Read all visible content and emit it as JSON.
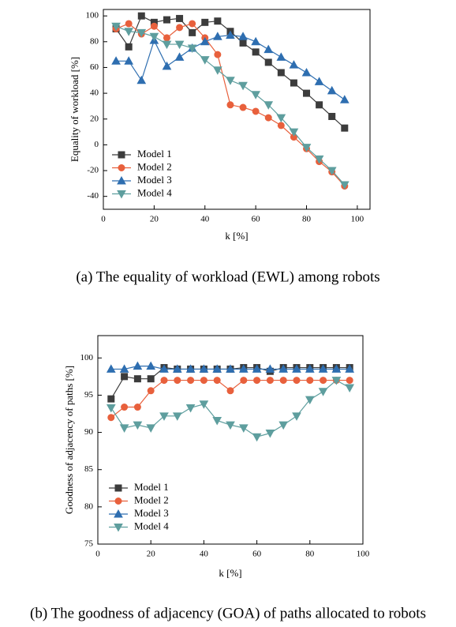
{
  "chart_data": [
    {
      "type": "line",
      "caption": "(a) The equality of workload (EWL) among robots",
      "xlabel": "k [%]",
      "ylabel": "Equality of workload [%]",
      "xlim": [
        0,
        105
      ],
      "xticks": [
        0,
        20,
        40,
        60,
        80,
        100
      ],
      "ylim": [
        -50,
        105
      ],
      "yticks": [
        -40,
        -20,
        0,
        20,
        40,
        60,
        80,
        100
      ],
      "legend": "lower left",
      "x": [
        5,
        10,
        15,
        20,
        25,
        30,
        35,
        40,
        45,
        50,
        55,
        60,
        65,
        70,
        75,
        80,
        85,
        90,
        95
      ],
      "series": [
        {
          "name": "Model 1",
          "color": "#3c3c3c",
          "marker": "square",
          "values": [
            90,
            76,
            100,
            95,
            97,
            98,
            87,
            95,
            96,
            88,
            79,
            72,
            64,
            56,
            48,
            40,
            31,
            22,
            13
          ]
        },
        {
          "name": "Model 2",
          "color": "#e8603c",
          "marker": "circle",
          "values": [
            90,
            94,
            86,
            92,
            83,
            91,
            94,
            83,
            70,
            31,
            29,
            26,
            21,
            15,
            6,
            -3,
            -13,
            -21,
            -32
          ]
        },
        {
          "name": "Model 3",
          "color": "#2e6eb0",
          "marker": "triangle-up",
          "values": [
            65,
            65,
            50,
            81,
            61,
            68,
            75,
            80,
            84,
            85,
            84,
            80,
            74,
            68,
            62,
            56,
            49,
            42,
            35
          ]
        },
        {
          "name": "Model 4",
          "color": "#5e9e9e",
          "marker": "triangle-down",
          "values": [
            92,
            88,
            87,
            84,
            78,
            78,
            75,
            66,
            58,
            50,
            46,
            39,
            31,
            21,
            10,
            -2,
            -11,
            -20,
            -31
          ]
        }
      ]
    },
    {
      "type": "line",
      "caption": "(b) The goodness of adjacency (GOA) of paths allocated to robots",
      "xlabel": "k [%]",
      "ylabel": "Goodness of adjacency of paths [%]",
      "xlim": [
        0,
        100
      ],
      "xticks": [
        0,
        20,
        40,
        60,
        80,
        100
      ],
      "ylim": [
        75,
        103
      ],
      "yticks": [
        75,
        80,
        85,
        90,
        95,
        100
      ],
      "legend": "lower left",
      "x": [
        5,
        10,
        15,
        20,
        25,
        30,
        35,
        40,
        45,
        50,
        55,
        60,
        65,
        70,
        75,
        80,
        85,
        90,
        95
      ],
      "series": [
        {
          "name": "Model 1",
          "color": "#3c3c3c",
          "marker": "square",
          "values": [
            94.5,
            97.5,
            97.2,
            97.2,
            98.7,
            98.5,
            98.5,
            98.5,
            98.5,
            98.5,
            98.7,
            98.7,
            98.2,
            98.7,
            98.7,
            98.7,
            98.7,
            98.7,
            98.7
          ]
        },
        {
          "name": "Model 2",
          "color": "#e8603c",
          "marker": "circle",
          "values": [
            92,
            93.4,
            93.4,
            95.6,
            97,
            97,
            97,
            97,
            97,
            95.6,
            97,
            97,
            97,
            97,
            97,
            97,
            97,
            97,
            97
          ]
        },
        {
          "name": "Model 3",
          "color": "#2e6eb0",
          "marker": "triangle-up",
          "values": [
            98.5,
            98.5,
            98.9,
            98.9,
            98.5,
            98.5,
            98.5,
            98.5,
            98.5,
            98.5,
            98.5,
            98.5,
            98.5,
            98.5,
            98.5,
            98.5,
            98.5,
            98.5,
            98.5
          ]
        },
        {
          "name": "Model 4",
          "color": "#5e9e9e",
          "marker": "triangle-down",
          "values": [
            93.3,
            90.6,
            91,
            90.6,
            92.2,
            92.2,
            93.3,
            93.8,
            91.6,
            91,
            90.6,
            89.4,
            89.9,
            91,
            92.2,
            94.4,
            95.5,
            97,
            96
          ]
        }
      ]
    }
  ]
}
